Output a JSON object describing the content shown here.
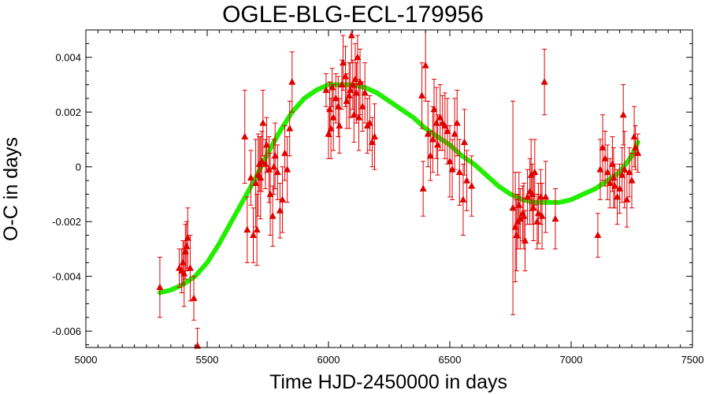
{
  "chart_data": {
    "type": "scatter",
    "title": "OGLE-BLG-ECL-179956",
    "xlabel": "Time HJD-2450000 in days",
    "ylabel": "O-C in days",
    "xlim": [
      5000,
      7500
    ],
    "ylim": [
      -0.0066,
      0.005
    ],
    "xticks": [
      5000,
      5500,
      6000,
      6500,
      7000,
      7500
    ],
    "yticks": [
      -0.006,
      -0.004,
      -0.002,
      0,
      0.002,
      0.004
    ],
    "xtick_labels": [
      "5000",
      "5500",
      "6000",
      "6500",
      "7000",
      "7500"
    ],
    "ytick_labels": [
      "-0.006",
      "-0.004",
      "-0.002",
      "0",
      "0.002",
      "0.004"
    ],
    "grid": false,
    "legend": "none",
    "colors": {
      "points": "#e00000",
      "fit": "#22ee00",
      "axes": "#000000"
    },
    "series": [
      {
        "marker": "triangle",
        "x": [
          5305,
          5385,
          5395,
          5400,
          5405,
          5410,
          5415,
          5420,
          5430,
          5445,
          5460,
          5655,
          5665,
          5680,
          5690,
          5700,
          5705,
          5710,
          5715,
          5720,
          5725,
          5730,
          5740,
          5745,
          5755,
          5760,
          5770,
          5775,
          5780,
          5790,
          5800,
          5810,
          5820,
          5830,
          5840,
          5850,
          5990,
          6000,
          6005,
          6010,
          6015,
          6020,
          6030,
          6040,
          6045,
          6055,
          6060,
          6070,
          6075,
          6085,
          6090,
          6095,
          6100,
          6105,
          6110,
          6115,
          6120,
          6125,
          6130,
          6140,
          6150,
          6160,
          6170,
          6180,
          6190,
          6385,
          6390,
          6400,
          6410,
          6420,
          6430,
          6435,
          6445,
          6450,
          6460,
          6470,
          6480,
          6490,
          6500,
          6510,
          6520,
          6530,
          6540,
          6555,
          6560,
          6570,
          6590,
          6760,
          6770,
          6775,
          6780,
          6785,
          6790,
          6800,
          6805,
          6810,
          6820,
          6830,
          6835,
          6840,
          6845,
          6850,
          6860,
          6865,
          6875,
          6880,
          6890,
          6895,
          6935,
          7110,
          7120,
          7130,
          7140,
          7150,
          7160,
          7170,
          7175,
          7180,
          7190,
          7200,
          7210,
          7215,
          7220,
          7230,
          7240,
          7250,
          7260,
          7265,
          7275
        ],
        "y": [
          -0.0044,
          -0.0037,
          -0.0038,
          -0.0035,
          -0.0039,
          -0.0031,
          -0.0029,
          -0.0026,
          -0.0037,
          -0.0048,
          -0.0066,
          0.0011,
          -0.0023,
          -0.0004,
          -0.0025,
          -0.0006,
          -0.0023,
          -0.0003,
          0.0001,
          -0.0004,
          0.0002,
          0.0016,
          0.0001,
          0.0008,
          -0.0001,
          -0.001,
          -0.0018,
          0.0,
          0.0004,
          -0.0002,
          -0.0016,
          -0.0012,
          0.0005,
          -0.0001,
          0.0014,
          0.0031,
          0.0028,
          0.0012,
          0.0021,
          0.0014,
          0.0029,
          0.0018,
          0.0025,
          0.0022,
          0.0015,
          0.003,
          0.0038,
          0.0033,
          0.0024,
          0.0026,
          0.0028,
          0.0048,
          0.003,
          0.0019,
          0.0032,
          0.0027,
          0.004,
          0.0018,
          0.0031,
          0.0022,
          0.0027,
          0.0015,
          0.0016,
          0.0009,
          0.0011,
          0.0026,
          -0.0008,
          0.0037,
          0.0012,
          0.0004,
          0.001,
          0.0021,
          0.0016,
          0.0008,
          0.0018,
          0.0016,
          0.0015,
          0.0013,
          0.0002,
          -0.0001,
          0.0012,
          0.0016,
          -0.0002,
          -0.0012,
          0.0009,
          -0.0005,
          -0.0007,
          -0.0015,
          -0.0022,
          -0.0025,
          -0.002,
          -0.0014,
          -0.0019,
          -0.0017,
          -0.0018,
          -0.0027,
          -0.0011,
          -0.0009,
          -0.0003,
          -0.001,
          -0.0015,
          -0.0002,
          -0.002,
          -0.0017,
          -0.0011,
          -0.0018,
          0.0031,
          -0.0011,
          -0.0019,
          -0.0025,
          -0.0001,
          0.0007,
          0.0003,
          -0.0002,
          -0.0006,
          0.0001,
          -0.0004,
          -0.0007,
          -0.0011,
          -0.0008,
          -0.0003,
          0.0019,
          -0.0001,
          -0.0012,
          -0.0002,
          -0.0005,
          0.0011,
          0.0007,
          0.0005
        ],
        "yerr": [
          0.0011,
          0.0007,
          0.0008,
          0.0008,
          0.0012,
          0.001,
          0.0009,
          0.0011,
          0.0012,
          0.0008,
          0.0007,
          0.0017,
          0.0012,
          0.001,
          0.001,
          0.0016,
          0.0013,
          0.0015,
          0.001,
          0.0015,
          0.0011,
          0.0012,
          0.0009,
          0.001,
          0.0012,
          0.0015,
          0.0011,
          0.001,
          0.0012,
          0.001,
          0.001,
          0.0012,
          0.001,
          0.0012,
          0.001,
          0.0011,
          0.0006,
          0.0009,
          0.001,
          0.0011,
          0.0007,
          0.0012,
          0.0009,
          0.0011,
          0.001,
          0.0009,
          0.001,
          0.0011,
          0.001,
          0.0012,
          0.001,
          0.001,
          0.0009,
          0.001,
          0.0013,
          0.0011,
          0.0008,
          0.0012,
          0.0012,
          0.0009,
          0.0011,
          0.001,
          0.001,
          0.0009,
          0.0012,
          0.0012,
          0.001,
          0.0013,
          0.0012,
          0.0009,
          0.0012,
          0.0011,
          0.0013,
          0.0011,
          0.0012,
          0.001,
          0.0012,
          0.0012,
          0.0013,
          0.0011,
          0.0013,
          0.0012,
          0.0012,
          0.0013,
          0.0012,
          0.0011,
          0.0011,
          0.0039,
          0.002,
          0.0013,
          0.001,
          0.0012,
          0.0011,
          0.001,
          0.0012,
          0.0011,
          0.001,
          0.0012,
          0.0013,
          0.0011,
          0.0012,
          0.0012,
          0.001,
          0.0011,
          0.001,
          0.0012,
          0.0012,
          0.0013,
          0.0011,
          0.0008,
          0.0011,
          0.0012,
          0.001,
          0.001,
          0.0009,
          0.001,
          0.0011,
          0.0008,
          0.001,
          0.0009,
          0.001,
          0.0011,
          0.0014,
          0.001,
          0.0009,
          0.001,
          0.0011,
          0.0008,
          0.0007
        ]
      },
      {
        "type": "line",
        "x": [
          5305,
          5350,
          5400,
          5450,
          5500,
          5550,
          5600,
          5650,
          5700,
          5750,
          5800,
          5850,
          5900,
          5950,
          6000,
          6050,
          6100,
          6150,
          6200,
          6250,
          6300,
          6350,
          6400,
          6450,
          6500,
          6550,
          6600,
          6650,
          6700,
          6750,
          6800,
          6850,
          6900,
          6950,
          7000,
          7050,
          7100,
          7150,
          7200,
          7250,
          7275
        ],
        "y": [
          -0.0046,
          -0.0045,
          -0.0043,
          -0.004,
          -0.0035,
          -0.0028,
          -0.002,
          -0.0012,
          -0.0004,
          0.0005,
          0.0013,
          0.002,
          0.0025,
          0.0028,
          0.003,
          0.003,
          0.003,
          0.0029,
          0.0027,
          0.0024,
          0.0021,
          0.0018,
          0.0014,
          0.0011,
          0.0008,
          0.0004,
          0.0001,
          -0.0003,
          -0.0007,
          -0.001,
          -0.0012,
          -0.0013,
          -0.0013,
          -0.0013,
          -0.0012,
          -0.001,
          -0.0008,
          -0.0005,
          -0.0002,
          0.0004,
          0.0009
        ]
      }
    ]
  }
}
